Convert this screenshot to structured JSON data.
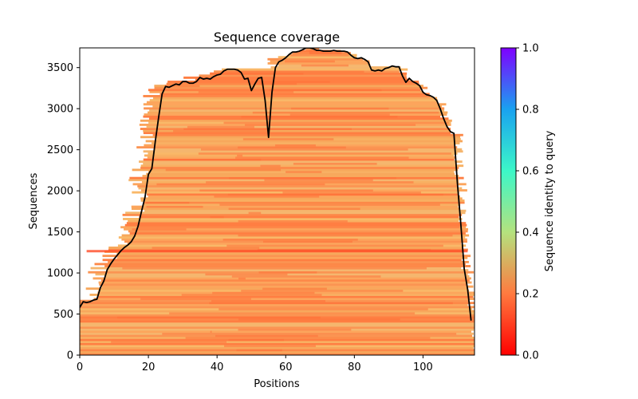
{
  "chart_data": {
    "type": "heatmap",
    "title": "Sequence coverage",
    "xlabel": "Positions",
    "ylabel": "Sequences",
    "xlim": [
      0,
      115
    ],
    "ylim": [
      0,
      3740
    ],
    "x_ticks": [
      0,
      20,
      40,
      60,
      80,
      100
    ],
    "y_ticks": [
      0,
      500,
      1000,
      1500,
      2000,
      2500,
      3000,
      3500
    ],
    "colorbar": {
      "label": "Sequence identity to query",
      "range": [
        0,
        1
      ],
      "ticks": [
        0.0,
        0.2,
        0.4,
        0.6,
        0.8,
        1.0
      ],
      "colormap": "rainbow_r"
    },
    "coverage_line": {
      "name": "coverage",
      "color": "#000000",
      "x": [
        0,
        1,
        2,
        3,
        4,
        5,
        6,
        7,
        8,
        9,
        10,
        11,
        12,
        13,
        14,
        15,
        16,
        17,
        18,
        19,
        20,
        21,
        22,
        23,
        24,
        25,
        26,
        27,
        28,
        29,
        30,
        31,
        32,
        33,
        34,
        35,
        36,
        37,
        38,
        39,
        40,
        41,
        42,
        43,
        44,
        45,
        46,
        47,
        48,
        49,
        50,
        51,
        52,
        53,
        54,
        55,
        56,
        57,
        58,
        59,
        60,
        61,
        62,
        63,
        64,
        65,
        66,
        67,
        68,
        69,
        70,
        71,
        72,
        73,
        74,
        75,
        76,
        77,
        78,
        79,
        80,
        81,
        82,
        83,
        84,
        85,
        86,
        87,
        88,
        89,
        90,
        91,
        92,
        93,
        94,
        95,
        96,
        97,
        98,
        99,
        100,
        101,
        102,
        103,
        104,
        105,
        106,
        107,
        108,
        109,
        110,
        111,
        112,
        113,
        114
      ],
      "values": [
        580,
        650,
        640,
        650,
        670,
        680,
        820,
        900,
        1040,
        1110,
        1170,
        1220,
        1270,
        1310,
        1340,
        1380,
        1450,
        1570,
        1750,
        1920,
        2200,
        2270,
        2600,
        2900,
        3180,
        3270,
        3260,
        3280,
        3300,
        3290,
        3330,
        3330,
        3310,
        3310,
        3330,
        3380,
        3360,
        3370,
        3360,
        3390,
        3410,
        3420,
        3460,
        3480,
        3480,
        3480,
        3470,
        3440,
        3360,
        3370,
        3220,
        3300,
        3370,
        3380,
        3100,
        2650,
        3200,
        3500,
        3570,
        3590,
        3620,
        3660,
        3690,
        3690,
        3700,
        3720,
        3740,
        3740,
        3730,
        3710,
        3710,
        3700,
        3700,
        3700,
        3710,
        3700,
        3700,
        3700,
        3690,
        3650,
        3620,
        3610,
        3620,
        3600,
        3570,
        3470,
        3460,
        3470,
        3460,
        3490,
        3500,
        3520,
        3510,
        3510,
        3400,
        3320,
        3370,
        3330,
        3310,
        3280,
        3200,
        3170,
        3160,
        3140,
        3100,
        3000,
        2880,
        2780,
        2720,
        2700,
        2100,
        1600,
        1050,
        800,
        420
      ]
    }
  }
}
